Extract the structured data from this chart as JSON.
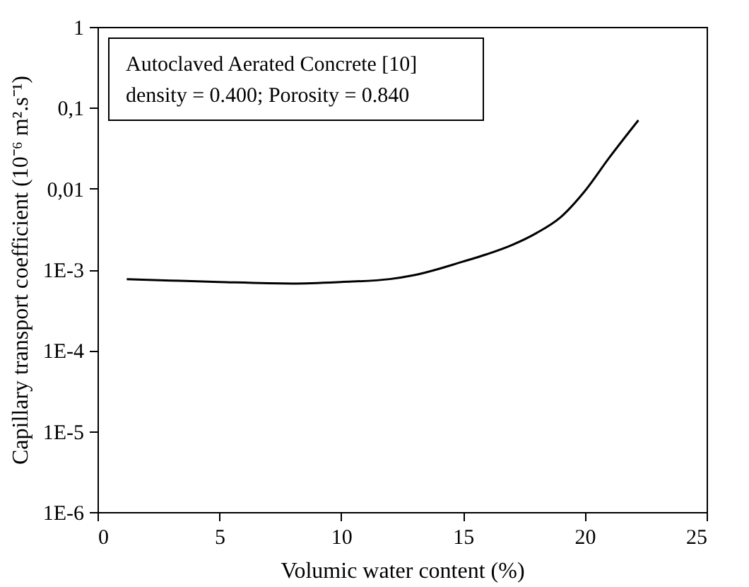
{
  "chart_data": {
    "type": "line",
    "xlabel": "Volumic water content (%)",
    "ylabel": "Capillary transport coefficient (10⁻⁶ m².s⁻¹)",
    "annotations": [
      "Autoclaved Aerated Concrete [10]",
      "density = 0.400; Porosity = 0.840"
    ],
    "x": [
      1.2,
      3,
      5,
      8,
      10,
      12,
      13,
      15,
      16,
      17,
      18,
      19,
      20,
      21,
      22.2
    ],
    "series": [
      {
        "color": "#000000",
        "values": [
          0.00076,
          0.00073,
          0.0007,
          0.00067,
          0.0007,
          0.00076,
          0.00085,
          0.00125,
          0.00155,
          0.002,
          0.0028,
          0.0044,
          0.0093,
          0.024,
          0.07
        ]
      }
    ],
    "log": "y",
    "xlim": [
      0,
      25
    ],
    "xticks": [
      0,
      5,
      10,
      15,
      20,
      25
    ],
    "ylim": [
      1e-06,
      1
    ],
    "yticks": [
      {
        "value": 1,
        "label": "1"
      },
      {
        "value": 0.1,
        "label": "0,1"
      },
      {
        "value": 0.01,
        "label": "0,01"
      },
      {
        "value": 0.001,
        "label": "1E-3"
      },
      {
        "value": 0.0001,
        "label": "1E-4"
      },
      {
        "value": 1e-05,
        "label": "1E-5"
      },
      {
        "value": 1e-06,
        "label": "1E-6"
      }
    ],
    "grid": false,
    "marker": "none",
    "line_style": "solid"
  }
}
